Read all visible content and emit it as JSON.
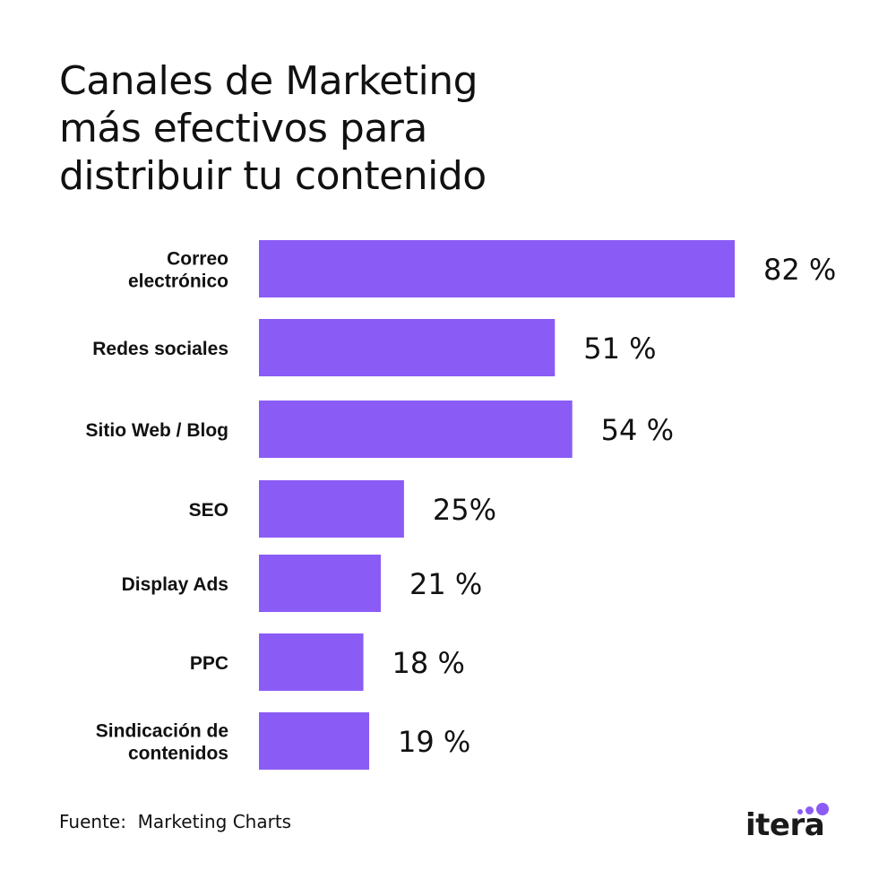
{
  "title_lines": [
    "Canales de Marketing",
    "más efectivos para",
    "distribuir tu contenido"
  ],
  "source": "Fuente:  Marketing Charts",
  "logo": {
    "text": "itera",
    "accent_color": "#8a5cf5"
  },
  "chart_data": {
    "type": "bar",
    "orientation": "horizontal",
    "title": "Canales de Marketing más efectivos para distribuir tu contenido",
    "categories": [
      [
        "Correo",
        "electrónico"
      ],
      [
        "Redes sociales"
      ],
      [
        "Sitio Web / Blog"
      ],
      [
        "SEO"
      ],
      [
        "Display Ads"
      ],
      [
        "PPC"
      ],
      [
        "Sindicación de",
        "contenidos"
      ]
    ],
    "values": [
      82,
      51,
      54,
      25,
      21,
      18,
      19
    ],
    "value_labels": [
      "82 %",
      "51 %",
      "54 %",
      "25%",
      "21 %",
      "18 %",
      "19 %"
    ],
    "bar_color": "#8a5cf5",
    "xlim": [
      0,
      100
    ],
    "grid": false,
    "legend": "none"
  }
}
